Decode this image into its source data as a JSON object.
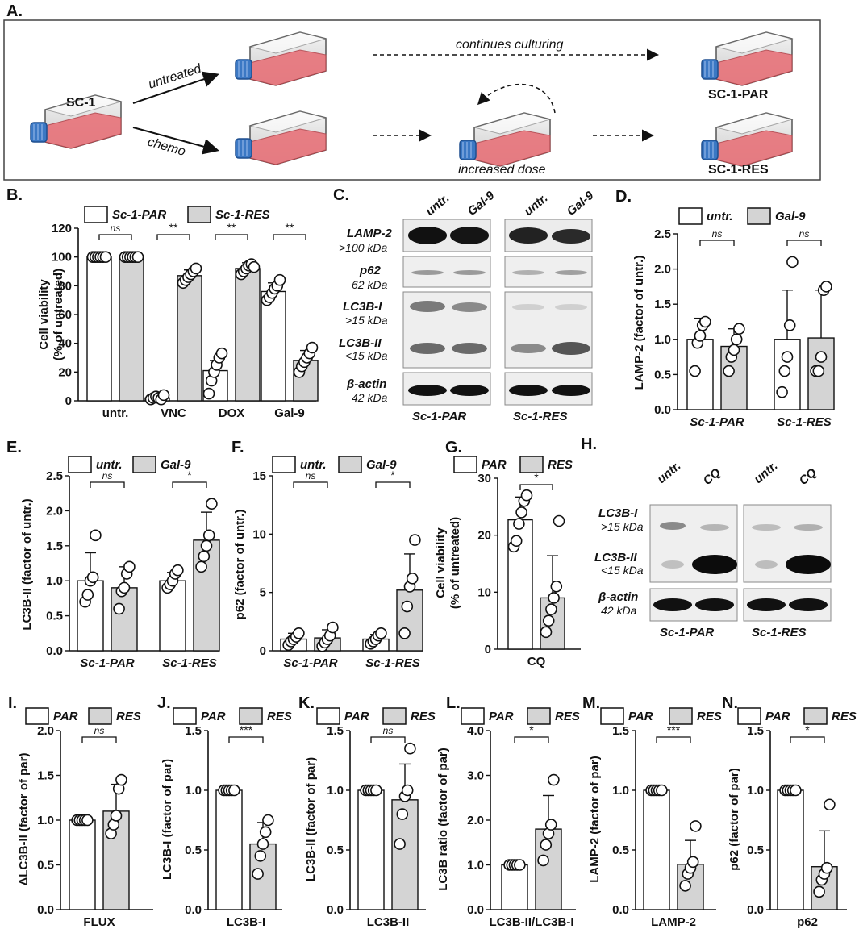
{
  "panel_a": {
    "label": "A.",
    "source_label": "SC-1",
    "arrow_untreated": "untreated",
    "arrow_chemo": "chemo",
    "continues_label": "continues culturing",
    "increased_dose_label": "increased dose",
    "result_par": "SC-1-PAR",
    "result_res": "SC-1-RES"
  },
  "blot_c": {
    "label": "C.",
    "columns": [
      "untr.",
      "Gal-9",
      "untr.",
      "Gal-9"
    ],
    "rows": [
      {
        "name": "LAMP-2",
        "size": ">100 kDa"
      },
      {
        "name": "p62",
        "size": "62 kDa"
      },
      {
        "name": "LC3B-I",
        "size": ">15 kDa"
      },
      {
        "name": "LC3B-II",
        "size": "<15 kDa"
      },
      {
        "name": "β-actin",
        "size": "42 kDa"
      }
    ],
    "groups": [
      "Sc-1-PAR",
      "Sc-1-RES"
    ]
  },
  "blot_h": {
    "label": "H.",
    "columns": [
      "untr.",
      "CQ",
      "untr.",
      "CQ"
    ],
    "rows": [
      {
        "name": "LC3B-I",
        "size": ">15 kDa"
      },
      {
        "name": "LC3B-II",
        "size": "<15 kDa"
      },
      {
        "name": "β-actin",
        "size": "42 kDa"
      }
    ],
    "groups": [
      "Sc-1-PAR",
      "Sc-1-RES"
    ]
  },
  "colors": {
    "open_bar": "#ffffff",
    "grey_bar": "#d4d4d4",
    "flask_body": "#e8737a",
    "flask_cap": "#3b78c4",
    "stroke": "#111111"
  },
  "chart_data": [
    {
      "id": "B",
      "label": "B.",
      "type": "bar",
      "legend": [
        "Sc-1-PAR",
        "Sc-1-RES"
      ],
      "ylabel_lines": [
        "Cell viability",
        "(% of untreated)"
      ],
      "ylim": [
        0,
        120
      ],
      "yticks": [
        0,
        20,
        40,
        60,
        80,
        100,
        120
      ],
      "yticklabels": [
        "0",
        "20",
        "40",
        "60",
        "80",
        "100",
        "120"
      ],
      "categories": [
        "untr.",
        "VNC",
        "DOX",
        "Gal-9"
      ],
      "series": [
        {
          "name": "Sc-1-PAR",
          "values": [
            100,
            2,
            21,
            76
          ],
          "err": [
            0,
            0,
            7,
            6
          ],
          "points": [
            [
              100,
              100,
              100,
              100,
              100,
              100
            ],
            [
              1,
              2,
              3,
              2,
              1,
              4
            ],
            [
              5,
              14,
              20,
              25,
              30,
              33
            ],
            [
              70,
              72,
              75,
              78,
              80,
              84
            ]
          ]
        },
        {
          "name": "Sc-1-RES",
          "values": [
            100,
            87,
            92,
            28
          ],
          "err": [
            0,
            4,
            4,
            7
          ],
          "points": [
            [
              100,
              100,
              100,
              100,
              100,
              100
            ],
            [
              82,
              84,
              86,
              88,
              90,
              92
            ],
            [
              88,
              90,
              92,
              94,
              95,
              93
            ],
            [
              20,
              24,
              27,
              30,
              33,
              37
            ]
          ]
        }
      ],
      "sig": [
        "ns",
        "**",
        "**",
        "**"
      ]
    },
    {
      "id": "D",
      "label": "D.",
      "type": "bar",
      "legend": [
        "untr.",
        "Gal-9"
      ],
      "ylabel_lines": [
        "LAMP-2 (factor of untr.)"
      ],
      "ylim": [
        0,
        2.5
      ],
      "yticks": [
        0,
        0.5,
        1.0,
        1.5,
        2.0,
        2.5
      ],
      "yticklabels": [
        "0.0",
        "0.5",
        "1.0",
        "1.5",
        "2.0",
        "2.5"
      ],
      "categories": [
        "Sc-1-PAR",
        "Sc-1-RES"
      ],
      "series": [
        {
          "name": "untr.",
          "values": [
            1.0,
            1.0
          ],
          "err": [
            0.3,
            0.7
          ],
          "points": [
            [
              0.55,
              0.95,
              1.05,
              1.2,
              1.25
            ],
            [
              0.25,
              0.55,
              0.75,
              1.2,
              2.1
            ]
          ]
        },
        {
          "name": "Gal-9",
          "values": [
            0.9,
            1.02
          ],
          "err": [
            0.25,
            0.68
          ],
          "points": [
            [
              0.55,
              0.75,
              0.85,
              1.0,
              1.15
            ],
            [
              0.55,
              0.55,
              0.75,
              1.7,
              1.75
            ]
          ]
        }
      ],
      "sig": [
        "ns",
        "ns"
      ]
    },
    {
      "id": "E",
      "label": "E.",
      "type": "bar",
      "legend": [
        "untr.",
        "Gal-9"
      ],
      "ylabel_lines": [
        "LC3B-II (factor of untr.)"
      ],
      "ylim": [
        0,
        2.5
      ],
      "yticks": [
        0,
        0.5,
        1.0,
        1.5,
        2.0,
        2.5
      ],
      "yticklabels": [
        "0.0",
        "0.5",
        "1.0",
        "1.5",
        "2.0",
        "2.5"
      ],
      "categories": [
        "Sc-1-PAR",
        "Sc-1-RES"
      ],
      "series": [
        {
          "name": "untr.",
          "values": [
            1.0,
            1.0
          ],
          "err": [
            0.4,
            0.12
          ],
          "points": [
            [
              0.7,
              0.8,
              1.0,
              1.05,
              1.65
            ],
            [
              0.9,
              0.95,
              1.0,
              1.1,
              1.15
            ]
          ]
        },
        {
          "name": "Gal-9",
          "values": [
            0.9,
            1.58
          ],
          "err": [
            0.3,
            0.4
          ],
          "points": [
            [
              0.6,
              0.85,
              0.9,
              1.1,
              1.2
            ],
            [
              1.2,
              1.35,
              1.5,
              1.65,
              2.1
            ]
          ]
        }
      ],
      "sig": [
        "ns",
        "*"
      ]
    },
    {
      "id": "F",
      "label": "F.",
      "type": "bar",
      "legend": [
        "untr.",
        "Gal-9"
      ],
      "ylabel_lines": [
        "p62 (factor of untr.)"
      ],
      "ylim": [
        0,
        15
      ],
      "yticks": [
        0,
        5,
        10,
        15
      ],
      "yticklabels": [
        "0",
        "5",
        "10",
        "15"
      ],
      "categories": [
        "Sc-1-PAR",
        "Sc-1-RES"
      ],
      "series": [
        {
          "name": "untr.",
          "values": [
            1.0,
            1.0
          ],
          "err": [
            0.5,
            0.4
          ],
          "points": [
            [
              0.5,
              0.8,
              1.0,
              1.2,
              1.5
            ],
            [
              0.6,
              0.8,
              1.0,
              1.3,
              1.5
            ]
          ]
        },
        {
          "name": "Gal-9",
          "values": [
            1.1,
            5.2
          ],
          "err": [
            0.7,
            3.1
          ],
          "points": [
            [
              0.4,
              0.7,
              1.0,
              1.3,
              2.0
            ],
            [
              1.5,
              3.8,
              5.5,
              6.2,
              9.5
            ]
          ]
        }
      ],
      "sig": [
        "ns",
        "*"
      ]
    },
    {
      "id": "G",
      "label": "G.",
      "type": "bar",
      "legend": [
        "PAR",
        "RES"
      ],
      "ylabel_lines": [
        "Cell viability",
        "(% of untreated)"
      ],
      "ylim": [
        0,
        30
      ],
      "yticks": [
        0,
        10,
        20,
        30
      ],
      "yticklabels": [
        "0",
        "10",
        "20",
        "30"
      ],
      "categories": [
        "CQ"
      ],
      "series": [
        {
          "name": "PAR",
          "values": [
            22.7
          ],
          "err": [
            4.0
          ],
          "points": [
            [
              18,
              19,
              22,
              24,
              26,
              27
            ]
          ]
        },
        {
          "name": "RES",
          "values": [
            9.0
          ],
          "err": [
            7.4
          ],
          "points": [
            [
              3,
              5,
              7,
              9,
              11,
              22.5
            ]
          ]
        }
      ],
      "sig": [
        "*"
      ]
    },
    {
      "id": "I",
      "label": "I.",
      "type": "bar",
      "legend": [
        "PAR",
        "RES"
      ],
      "ylabel_lines": [
        "ΔLC3B-II (factor of par)"
      ],
      "ylim": [
        0,
        2.0
      ],
      "yticks": [
        0,
        0.5,
        1.0,
        1.5,
        2.0
      ],
      "yticklabels": [
        "0.0",
        "0.5",
        "1.0",
        "1.5",
        "2.0"
      ],
      "categories": [
        "FLUX"
      ],
      "series": [
        {
          "name": "PAR",
          "values": [
            1.0
          ],
          "err": [
            0
          ],
          "points": [
            [
              1,
              1,
              1,
              1,
              1
            ]
          ]
        },
        {
          "name": "RES",
          "values": [
            1.1
          ],
          "err": [
            0.3
          ],
          "points": [
            [
              0.85,
              0.95,
              1.05,
              1.35,
              1.45
            ]
          ]
        }
      ],
      "sig": [
        "ns"
      ]
    },
    {
      "id": "J",
      "label": "J.",
      "type": "bar",
      "legend": [
        "PAR",
        "RES"
      ],
      "ylabel_lines": [
        "LC3B-I (factor of par)"
      ],
      "ylim": [
        0,
        1.5
      ],
      "yticks": [
        0,
        0.5,
        1.0,
        1.5
      ],
      "yticklabels": [
        "0.0",
        "0.5",
        "1.0",
        "1.5"
      ],
      "categories": [
        "LC3B-I"
      ],
      "series": [
        {
          "name": "PAR",
          "values": [
            1.0
          ],
          "err": [
            0
          ],
          "points": [
            [
              1,
              1,
              1,
              1,
              1
            ]
          ]
        },
        {
          "name": "RES",
          "values": [
            0.55
          ],
          "err": [
            0.18
          ],
          "points": [
            [
              0.3,
              0.45,
              0.55,
              0.65,
              0.75
            ]
          ]
        }
      ],
      "sig": [
        "***"
      ]
    },
    {
      "id": "K",
      "label": "K.",
      "type": "bar",
      "legend": [
        "PAR",
        "RES"
      ],
      "ylabel_lines": [
        "LC3B-II (factor of par)"
      ],
      "ylim": [
        0,
        1.5
      ],
      "yticks": [
        0,
        0.5,
        1.0,
        1.5
      ],
      "yticklabels": [
        "0.0",
        "0.5",
        "1.0",
        "1.5"
      ],
      "categories": [
        "LC3B-II"
      ],
      "series": [
        {
          "name": "PAR",
          "values": [
            1.0
          ],
          "err": [
            0
          ],
          "points": [
            [
              1,
              1,
              1,
              1,
              1
            ]
          ]
        },
        {
          "name": "RES",
          "values": [
            0.92
          ],
          "err": [
            0.3
          ],
          "points": [
            [
              0.55,
              0.8,
              0.95,
              1.0,
              1.35
            ]
          ]
        }
      ],
      "sig": [
        "ns"
      ]
    },
    {
      "id": "L",
      "label": "L.",
      "type": "bar",
      "legend": [
        "PAR",
        "RES"
      ],
      "ylabel_lines": [
        "LC3B ratio (factor of par)"
      ],
      "ylim": [
        0,
        4.0
      ],
      "yticks": [
        0,
        1.0,
        2.0,
        3.0,
        4.0
      ],
      "yticklabels": [
        "0.0",
        "1.0",
        "2.0",
        "3.0",
        "4.0"
      ],
      "categories": [
        "LC3B-II/LC3B-I"
      ],
      "series": [
        {
          "name": "PAR",
          "values": [
            1.0
          ],
          "err": [
            0
          ],
          "points": [
            [
              1,
              1,
              1,
              1,
              1
            ]
          ]
        },
        {
          "name": "RES",
          "values": [
            1.8
          ],
          "err": [
            0.75
          ],
          "points": [
            [
              1.1,
              1.45,
              1.7,
              1.9,
              2.9
            ]
          ]
        }
      ],
      "sig": [
        "*"
      ]
    },
    {
      "id": "M",
      "label": "M.",
      "type": "bar",
      "legend": [
        "PAR",
        "RES"
      ],
      "ylabel_lines": [
        "LAMP-2 (factor of par)"
      ],
      "ylim": [
        0,
        1.5
      ],
      "yticks": [
        0,
        0.5,
        1.0,
        1.5
      ],
      "yticklabels": [
        "0.0",
        "0.5",
        "1.0",
        "1.5"
      ],
      "categories": [
        "LAMP-2"
      ],
      "series": [
        {
          "name": "PAR",
          "values": [
            1.0
          ],
          "err": [
            0
          ],
          "points": [
            [
              1,
              1,
              1,
              1,
              1
            ]
          ]
        },
        {
          "name": "RES",
          "values": [
            0.38
          ],
          "err": [
            0.2
          ],
          "points": [
            [
              0.2,
              0.3,
              0.35,
              0.4,
              0.7
            ]
          ]
        }
      ],
      "sig": [
        "***"
      ]
    },
    {
      "id": "N",
      "label": "N.",
      "type": "bar",
      "legend": [
        "PAR",
        "RES"
      ],
      "ylabel_lines": [
        "p62 (factor of par)"
      ],
      "ylim": [
        0,
        1.5
      ],
      "yticks": [
        0,
        0.5,
        1.0,
        1.5
      ],
      "yticklabels": [
        "0.0",
        "0.5",
        "1.0",
        "1.5"
      ],
      "categories": [
        "p62"
      ],
      "series": [
        {
          "name": "PAR",
          "values": [
            1.0
          ],
          "err": [
            0
          ],
          "points": [
            [
              1,
              1,
              1,
              1,
              1
            ]
          ]
        },
        {
          "name": "RES",
          "values": [
            0.36
          ],
          "err": [
            0.3
          ],
          "points": [
            [
              0.15,
              0.25,
              0.3,
              0.35,
              0.88
            ]
          ]
        }
      ],
      "sig": [
        "*"
      ]
    }
  ]
}
